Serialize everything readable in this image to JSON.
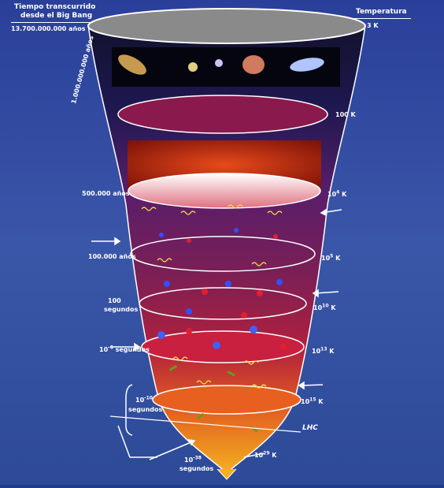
{
  "header": {
    "time_title_line1": "Tiempo transcurrido",
    "time_title_line2": "desde el Big Bang",
    "time_now": "13.700.000.000 años",
    "temp_title": "Temperatura",
    "temp_now": "3 K"
  },
  "time_labels": {
    "million": "1.000.000.000 años",
    "t500k": "500.000 años",
    "t100k": "100.000 años",
    "t100_line1": "100",
    "t100_line2": "segundos",
    "t1e6_base": "10",
    "t1e6_exp": "-6",
    "t1e6_unit": " segundos",
    "t1e10_base": "10",
    "t1e10_exp": "-10",
    "t1e10_unit": "segundos",
    "t1e38_base": "10",
    "t1e38_exp": "-38",
    "t1e38_unit": "segundos"
  },
  "temp_labels": {
    "t100": "100 K",
    "t1e4_base": "10",
    "t1e4_exp": "4",
    "t1e4_unit": " K",
    "t1e5_base": "10",
    "t1e5_exp": "5",
    "t1e5_unit": " K",
    "t1e10_base": "10",
    "t1e10_exp": "10",
    "t1e10_unit": " K",
    "t1e13_base": "10",
    "t1e13_exp": "13",
    "t1e13_unit": " K",
    "t1e15_base": "10",
    "t1e15_exp": "15",
    "t1e15_unit": " K",
    "t1e29_base": "10",
    "t1e29_exp": "29",
    "t1e29_unit": " K"
  },
  "lhc_label": "LHC",
  "colors": {
    "background": "#1f3a8c",
    "funnel_top": "#1a1a4a",
    "funnel_mid": "#8a1a4e",
    "funnel_bottom": "#f0a020",
    "white": "#ffffff"
  }
}
